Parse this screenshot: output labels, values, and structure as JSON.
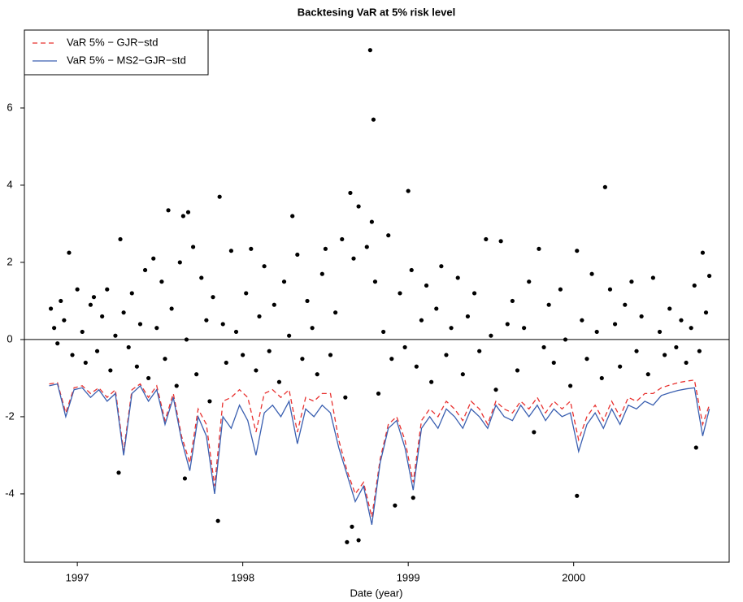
{
  "chart_data": {
    "type": "line",
    "title": "Backtesing VaR at 5% risk level",
    "x_label": "Date (year)",
    "xlim": [
      1996.68,
      2000.94
    ],
    "xticks": [
      1997,
      1998,
      1999,
      2000
    ],
    "ylim": [
      -5.77,
      8.02
    ],
    "yticks": [
      -4,
      -2,
      0,
      2,
      4,
      6
    ],
    "grid": false,
    "reference_line": 0,
    "legend": "upper left",
    "x": [
      1996.83,
      1996.88,
      1996.93,
      1996.98,
      1997.03,
      1997.08,
      1997.13,
      1997.18,
      1997.23,
      1997.28,
      1997.33,
      1997.38,
      1997.43,
      1997.48,
      1997.53,
      1997.58,
      1997.63,
      1997.68,
      1997.73,
      1997.78,
      1997.83,
      1997.88,
      1997.93,
      1997.98,
      1998.03,
      1998.08,
      1998.13,
      1998.18,
      1998.23,
      1998.28,
      1998.33,
      1998.38,
      1998.43,
      1998.48,
      1998.53,
      1998.58,
      1998.63,
      1998.68,
      1998.73,
      1998.78,
      1998.83,
      1998.88,
      1998.93,
      1998.98,
      1999.03,
      1999.08,
      1999.13,
      1999.18,
      1999.23,
      1999.28,
      1999.33,
      1999.38,
      1999.43,
      1999.48,
      1999.53,
      1999.58,
      1999.63,
      1999.68,
      1999.73,
      1999.78,
      1999.83,
      1999.88,
      1999.93,
      1999.98,
      2000.03,
      2000.08,
      2000.13,
      2000.18,
      2000.23,
      2000.28,
      2000.33,
      2000.38,
      2000.43,
      2000.48,
      2000.53,
      2000.58,
      2000.63,
      2000.68,
      2000.73,
      2000.78,
      2000.82
    ],
    "series": [
      {
        "name": "VaR 5% − GJR−std",
        "color": "#e8312f",
        "dashed": true,
        "values": [
          -1.15,
          -1.12,
          -1.9,
          -1.25,
          -1.2,
          -1.4,
          -1.25,
          -1.5,
          -1.3,
          -2.9,
          -1.3,
          -1.15,
          -1.5,
          -1.2,
          -2.1,
          -1.4,
          -2.5,
          -3.2,
          -1.8,
          -2.2,
          -3.8,
          -1.6,
          -1.5,
          -1.3,
          -1.5,
          -2.4,
          -1.4,
          -1.3,
          -1.5,
          -1.3,
          -2.4,
          -1.5,
          -1.6,
          -1.4,
          -1.4,
          -2.6,
          -3.4,
          -4.0,
          -3.7,
          -4.6,
          -3.1,
          -2.2,
          -2.0,
          -2.6,
          -3.7,
          -2.1,
          -1.8,
          -2.0,
          -1.6,
          -1.8,
          -2.1,
          -1.6,
          -1.8,
          -2.2,
          -1.6,
          -1.8,
          -1.9,
          -1.6,
          -1.8,
          -1.5,
          -1.9,
          -1.6,
          -1.8,
          -1.6,
          -2.6,
          -2.0,
          -1.7,
          -2.1,
          -1.6,
          -2.0,
          -1.5,
          -1.6,
          -1.4,
          -1.4,
          -1.25,
          -1.18,
          -1.12,
          -1.08,
          -1.05,
          -2.2,
          -1.7
        ]
      },
      {
        "name": "VaR 5% − MS2−GJR−std",
        "color": "#3a5fb0",
        "dashed": false,
        "values": [
          -1.2,
          -1.15,
          -2.0,
          -1.3,
          -1.25,
          -1.5,
          -1.3,
          -1.6,
          -1.4,
          -3.0,
          -1.4,
          -1.2,
          -1.6,
          -1.3,
          -2.2,
          -1.5,
          -2.6,
          -3.4,
          -2.0,
          -2.5,
          -4.0,
          -2.0,
          -2.3,
          -1.7,
          -2.1,
          -3.0,
          -1.9,
          -1.7,
          -2.0,
          -1.6,
          -2.7,
          -1.8,
          -2.0,
          -1.7,
          -1.9,
          -2.8,
          -3.5,
          -4.2,
          -3.8,
          -4.8,
          -3.2,
          -2.3,
          -2.1,
          -2.8,
          -3.9,
          -2.3,
          -2.0,
          -2.3,
          -1.8,
          -2.0,
          -2.3,
          -1.8,
          -2.0,
          -2.3,
          -1.7,
          -2.0,
          -2.1,
          -1.7,
          -2.0,
          -1.7,
          -2.1,
          -1.8,
          -2.0,
          -1.9,
          -2.9,
          -2.2,
          -1.9,
          -2.3,
          -1.8,
          -2.2,
          -1.7,
          -1.8,
          -1.6,
          -1.7,
          -1.45,
          -1.38,
          -1.32,
          -1.28,
          -1.25,
          -2.5,
          -1.8
        ]
      }
    ],
    "scatter": {
      "color": "#000000",
      "x": [
        1998.77,
        1998.79,
        1998.65,
        1999.0,
        2000.19,
        1997.86,
        1997.55,
        1997.64,
        1997.67,
        1998.3,
        1998.7,
        1998.78,
        1998.63,
        1998.7,
        1998.66,
        1997.85,
        2000.02,
        1998.92,
        1999.03,
        1997.25,
        1997.65,
        2000.74,
        1996.84,
        1996.86,
        1996.88,
        1996.9,
        1996.92,
        1996.95,
        1996.97,
        1997.0,
        1997.03,
        1997.05,
        1997.08,
        1997.1,
        1997.12,
        1997.15,
        1997.18,
        1997.2,
        1997.23,
        1997.26,
        1997.28,
        1997.31,
        1997.33,
        1997.36,
        1997.38,
        1997.41,
        1997.43,
        1997.46,
        1997.48,
        1997.51,
        1997.53,
        1997.57,
        1997.6,
        1997.62,
        1997.66,
        1997.7,
        1997.72,
        1997.75,
        1997.78,
        1997.8,
        1997.82,
        1997.88,
        1997.9,
        1997.93,
        1997.96,
        1998.0,
        1998.02,
        1998.05,
        1998.08,
        1998.1,
        1998.13,
        1998.16,
        1998.19,
        1998.22,
        1998.25,
        1998.28,
        1998.33,
        1998.36,
        1998.39,
        1998.42,
        1998.45,
        1998.48,
        1998.5,
        1998.53,
        1998.56,
        1998.6,
        1998.62,
        1998.67,
        1998.75,
        1998.8,
        1998.82,
        1998.85,
        1998.88,
        1998.9,
        1998.95,
        1998.98,
        1999.02,
        1999.05,
        1999.08,
        1999.11,
        1999.14,
        1999.17,
        1999.2,
        1999.23,
        1999.26,
        1999.3,
        1999.33,
        1999.36,
        1999.4,
        1999.43,
        1999.47,
        1999.5,
        1999.53,
        1999.56,
        1999.6,
        1999.63,
        1999.66,
        1999.7,
        1999.73,
        1999.76,
        1999.79,
        1999.82,
        1999.85,
        1999.88,
        1999.92,
        1999.95,
        1999.98,
        2000.02,
        2000.05,
        2000.08,
        2000.11,
        2000.14,
        2000.17,
        2000.22,
        2000.25,
        2000.28,
        2000.31,
        2000.35,
        2000.38,
        2000.41,
        2000.45,
        2000.48,
        2000.52,
        2000.55,
        2000.58,
        2000.62,
        2000.65,
        2000.68,
        2000.71,
        2000.73,
        2000.76,
        2000.78,
        2000.8,
        2000.82
      ],
      "values": [
        7.5,
        5.7,
        3.8,
        3.85,
        3.95,
        3.7,
        3.35,
        3.2,
        3.3,
        3.2,
        3.45,
        3.05,
        -5.25,
        -5.2,
        -4.85,
        -4.7,
        -4.05,
        -4.3,
        -4.1,
        -3.45,
        -3.6,
        -2.8,
        0.8,
        0.3,
        -0.1,
        1.0,
        0.5,
        2.25,
        -0.4,
        1.3,
        0.2,
        -0.6,
        0.9,
        1.1,
        -0.3,
        0.6,
        1.3,
        -0.8,
        0.1,
        2.6,
        0.7,
        -0.2,
        1.2,
        -0.7,
        0.4,
        1.8,
        -1.0,
        2.1,
        0.3,
        1.5,
        -0.5,
        0.8,
        -1.2,
        2.0,
        0.0,
        2.4,
        -0.9,
        1.6,
        0.5,
        -1.6,
        1.1,
        0.4,
        -0.6,
        2.3,
        0.2,
        -0.4,
        1.2,
        2.35,
        -0.8,
        0.6,
        1.9,
        -0.3,
        0.9,
        -1.1,
        1.5,
        0.1,
        2.2,
        -0.5,
        1.0,
        0.3,
        -0.9,
        1.7,
        2.35,
        -0.4,
        0.7,
        2.6,
        -1.5,
        2.1,
        2.4,
        1.5,
        -1.4,
        0.2,
        2.7,
        -0.5,
        1.2,
        -0.2,
        1.8,
        -0.7,
        0.5,
        1.4,
        -1.1,
        0.8,
        1.9,
        -0.4,
        0.3,
        1.6,
        -0.9,
        0.6,
        1.2,
        -0.3,
        2.6,
        0.1,
        -1.3,
        2.55,
        0.4,
        1.0,
        -0.8,
        0.3,
        1.5,
        -2.4,
        2.35,
        -0.2,
        0.9,
        -0.6,
        1.3,
        0.0,
        -1.2,
        2.3,
        0.5,
        -0.5,
        1.7,
        0.2,
        -1.0,
        1.3,
        0.4,
        -0.7,
        0.9,
        1.5,
        -0.3,
        0.6,
        -0.9,
        1.6,
        0.2,
        -0.4,
        0.8,
        -0.2,
        0.5,
        -0.6,
        0.3,
        1.4,
        -0.3,
        2.25,
        0.7,
        1.65
      ]
    }
  }
}
